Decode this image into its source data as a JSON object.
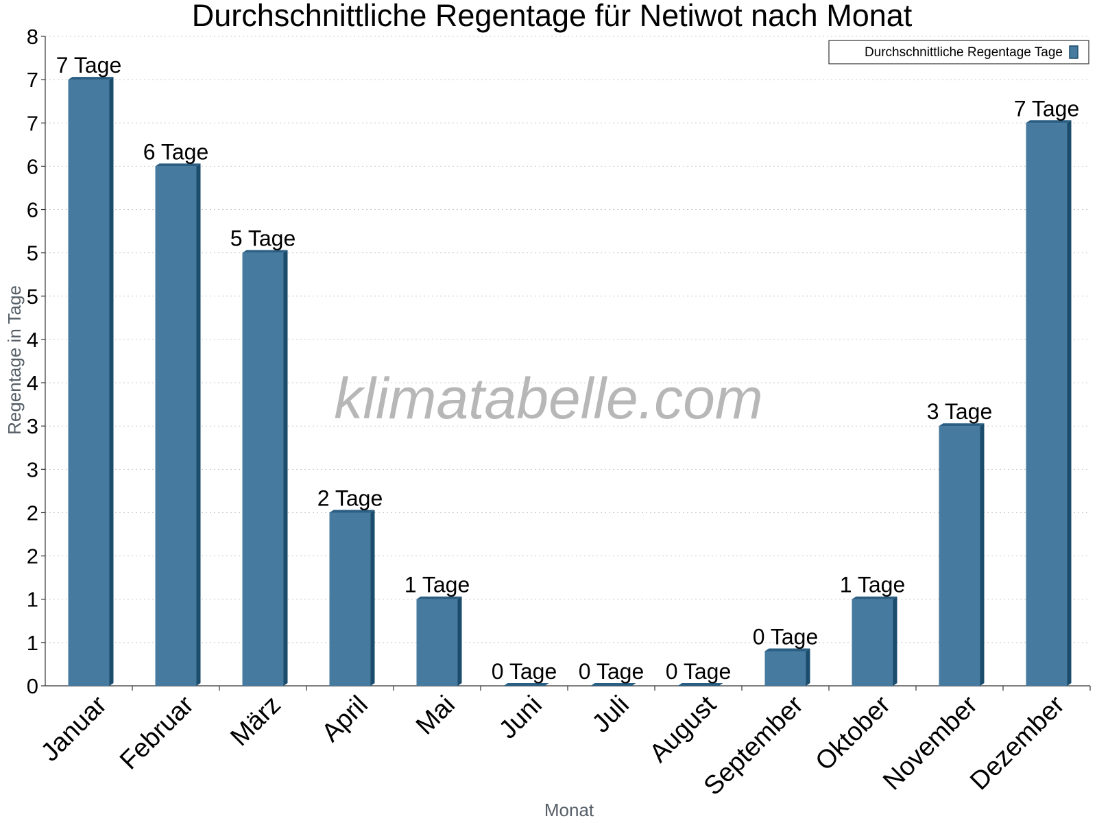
{
  "chart_data": {
    "type": "bar",
    "title": "Durchschnittliche Regentage für Netiwot nach Monat",
    "xlabel": "Monat",
    "ylabel": "Regentage in Tage",
    "categories": [
      "Januar",
      "Februar",
      "März",
      "April",
      "Mai",
      "Juni",
      "Juli",
      "August",
      "September",
      "Oktober",
      "November",
      "Dezember"
    ],
    "series": [
      {
        "name": "Durchschnittliche Regentage Tage",
        "values": [
          7,
          6,
          5,
          2,
          1,
          0,
          0,
          0,
          0.4,
          1,
          3,
          6.5
        ],
        "labels": [
          "7 Tage",
          "6 Tage",
          "5 Tage",
          "2 Tage",
          "1 Tage",
          "0 Tage",
          "0 Tage",
          "0 Tage",
          "0 Tage",
          "1 Tage",
          "3 Tage",
          "7 Tage"
        ]
      }
    ],
    "yticks": [
      0,
      0.5,
      1,
      1.5,
      2,
      2.5,
      3,
      3.5,
      4,
      4.5,
      5,
      5.5,
      6,
      6.5,
      7,
      7.5
    ],
    "ytick_labels": [
      "0",
      "1",
      "1",
      "2",
      "2",
      "3",
      "3",
      "4",
      "4",
      "5",
      "5",
      "6",
      "6",
      "7",
      "7",
      "8"
    ],
    "ylim": [
      0,
      7.5
    ],
    "grid": true,
    "legend_position": "top-right",
    "watermark": "klimatabelle.com",
    "colors": {
      "bar_front": "#467a9e",
      "bar_side": "#1b4c6c",
      "bar_top": "#2a5f83"
    }
  }
}
